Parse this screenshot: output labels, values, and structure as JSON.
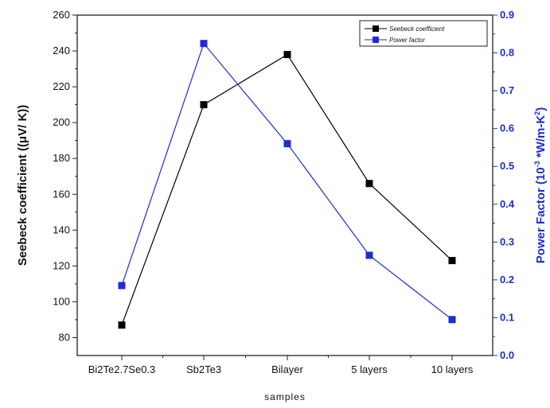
{
  "chart_data": {
    "type": "line",
    "categories": [
      "Bi2Te2.7Se0.3",
      "Sb2Te3",
      "Bilayer",
      "5 layers",
      "10 layers"
    ],
    "xlabel": "samples",
    "ylabel_left": "Seebeck coefficient ((μV/ K))",
    "ylabel_right_main": "Power Factor (10",
    "ylabel_right_sup1": "-3",
    "ylabel_right_mid": " *W/m-K",
    "ylabel_right_sup2": "2",
    "ylabel_right_end": ")",
    "ylim_left": [
      70,
      260
    ],
    "ylim_right": [
      0.0,
      0.9
    ],
    "yticks_left": [
      80,
      100,
      120,
      140,
      160,
      180,
      200,
      220,
      240,
      260
    ],
    "yticks_right": [
      "0.0",
      "0.1",
      "0.2",
      "0.3",
      "0.4",
      "0.5",
      "0.6",
      "0.7",
      "0.8",
      "0.9"
    ],
    "legend_position": "top-right",
    "series": [
      {
        "name": "Seebeck coefficient",
        "axis": "left",
        "color": "#000000",
        "values": [
          87,
          210,
          238,
          166,
          123
        ]
      },
      {
        "name": "Power factor",
        "axis": "right",
        "color": "#1f2bd6",
        "values": [
          0.185,
          0.825,
          0.56,
          0.265,
          0.095
        ]
      }
    ]
  }
}
